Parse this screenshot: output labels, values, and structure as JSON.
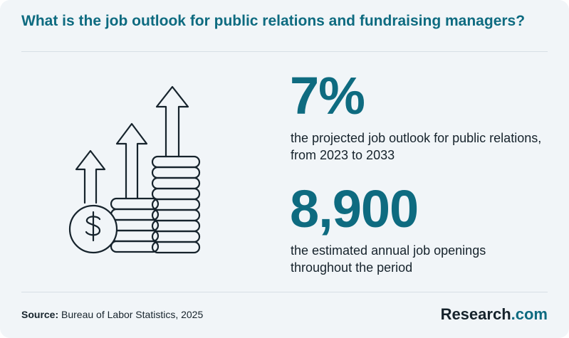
{
  "title": "What is the job outlook for public relations and fundraising managers?",
  "stats": [
    {
      "value": "7%",
      "description": "the projected job outlook for public relations, from 2023 to 2033"
    },
    {
      "value": "8,900",
      "description": "the estimated annual job openings throughout the period"
    }
  ],
  "source": {
    "label": "Source:",
    "text": "Bureau of Labor Statistics, 2025"
  },
  "brand": {
    "name": "Research",
    "suffix": ".com"
  },
  "colors": {
    "accent": "#0e6b80",
    "text": "#16232c",
    "background": "#f1f5f8"
  },
  "icons": [
    "up-arrow-icon",
    "coin-stack-icon",
    "dollar-coin-icon"
  ]
}
